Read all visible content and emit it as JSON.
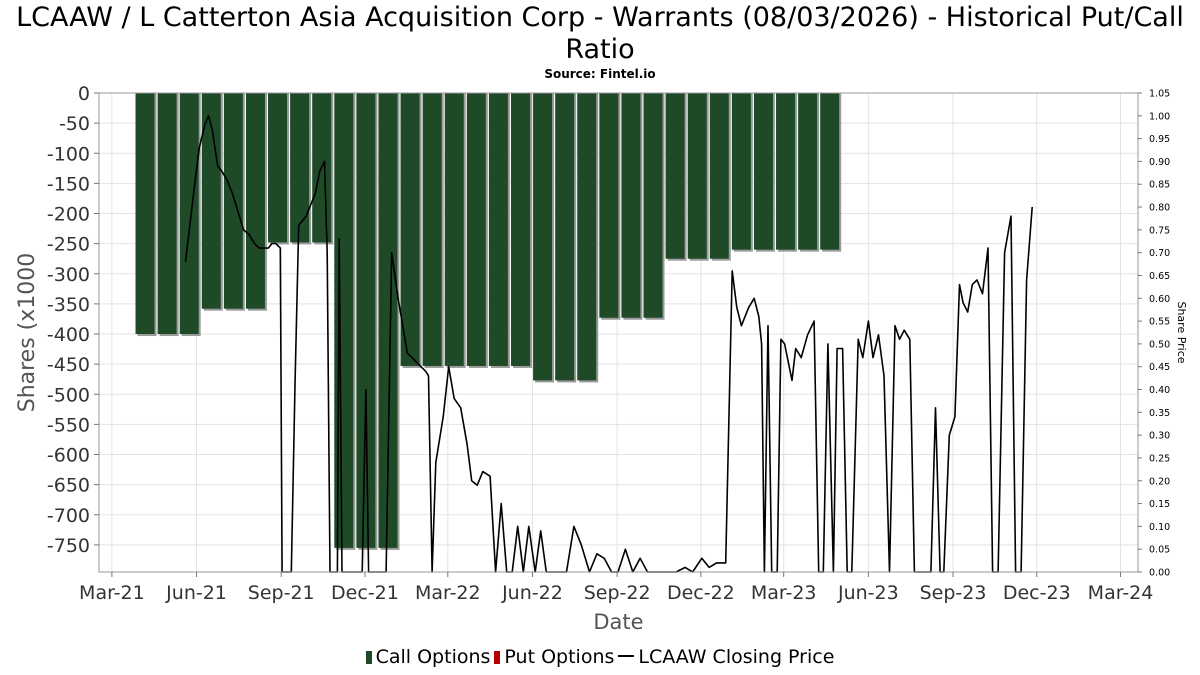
{
  "chart_data": {
    "type": "bar",
    "title": "LCAAW / L Catterton Asia Acquisition Corp - Warrants (08/03/2026) - Historical Put/Call Ratio",
    "subtitle": "Source: Fintel.io",
    "xlabel": "Date",
    "ylabel": "Shares (x1000",
    "ylabel_right": "Share Price",
    "x_ticks": [
      "Mar-21",
      "Jun-21",
      "Sep-21",
      "Dec-21",
      "Mar-22",
      "Jun-22",
      "Sep-22",
      "Dec-22",
      "Mar-23",
      "Jun-23",
      "Sep-23",
      "Dec-23",
      "Mar-24"
    ],
    "x_range": [
      "2021-02-15",
      "2024-03-20"
    ],
    "y_ticks": [
      0,
      -50,
      -100,
      -150,
      -200,
      -250,
      -300,
      -350,
      -400,
      -450,
      -500,
      -550,
      -600,
      -650,
      -700,
      -750
    ],
    "ylim": [
      -795,
      0
    ],
    "y2_ticks": [
      "0.00",
      "0.05",
      "0.10",
      "0.15",
      "0.20",
      "0.25",
      "0.30",
      "0.35",
      "0.40",
      "0.45",
      "0.50",
      "0.55",
      "0.60",
      "0.65",
      "0.70",
      "0.75",
      "0.80",
      "0.85",
      "0.90",
      "0.95",
      "1.00",
      "1.05"
    ],
    "y2lim": [
      0,
      1.05
    ],
    "grid": true,
    "legend_position": "bottom",
    "series": [
      {
        "name": "Call Options",
        "kind": "bar",
        "color": "#1e4a28",
        "points": [
          {
            "date": "2021-04-06",
            "value": -400
          },
          {
            "date": "2021-04-30",
            "value": -400
          },
          {
            "date": "2021-05-24",
            "value": -400
          },
          {
            "date": "2021-06-17",
            "value": -358
          },
          {
            "date": "2021-07-11",
            "value": -358
          },
          {
            "date": "2021-08-04",
            "value": -358
          },
          {
            "date": "2021-08-28",
            "value": -248
          },
          {
            "date": "2021-09-21",
            "value": -248
          },
          {
            "date": "2021-10-15",
            "value": -248
          },
          {
            "date": "2021-11-08",
            "value": -755
          },
          {
            "date": "2021-12-02",
            "value": -755
          },
          {
            "date": "2021-12-26",
            "value": -755
          },
          {
            "date": "2022-01-19",
            "value": -453
          },
          {
            "date": "2022-02-12",
            "value": -453
          },
          {
            "date": "2022-03-08",
            "value": -453
          },
          {
            "date": "2022-04-01",
            "value": -453
          },
          {
            "date": "2022-04-25",
            "value": -453
          },
          {
            "date": "2022-05-19",
            "value": -453
          },
          {
            "date": "2022-06-12",
            "value": -477
          },
          {
            "date": "2022-07-06",
            "value": -477
          },
          {
            "date": "2022-07-30",
            "value": -477
          },
          {
            "date": "2022-08-23",
            "value": -373
          },
          {
            "date": "2022-09-16",
            "value": -373
          },
          {
            "date": "2022-10-10",
            "value": -373
          },
          {
            "date": "2022-11-03",
            "value": -275
          },
          {
            "date": "2022-11-27",
            "value": -275
          },
          {
            "date": "2022-12-21",
            "value": -275
          },
          {
            "date": "2023-01-14",
            "value": -260
          },
          {
            "date": "2023-02-07",
            "value": -260
          },
          {
            "date": "2023-03-03",
            "value": -260
          },
          {
            "date": "2023-03-27",
            "value": -260
          },
          {
            "date": "2023-04-20",
            "value": -260
          }
        ]
      },
      {
        "name": "Put Options",
        "kind": "bar",
        "color": "#b40000",
        "points": []
      },
      {
        "name": "LCAAW Closing Price",
        "kind": "line",
        "axis": "right",
        "color": "#000000",
        "points": [
          [
            "2021-05-20",
            0.68
          ],
          [
            "2021-05-30",
            0.85
          ],
          [
            "2021-06-04",
            0.93
          ],
          [
            "2021-06-10",
            0.98
          ],
          [
            "2021-06-14",
            1.0
          ],
          [
            "2021-06-18",
            0.97
          ],
          [
            "2021-06-24",
            0.89
          ],
          [
            "2021-06-28",
            0.88
          ],
          [
            "2021-07-04",
            0.86
          ],
          [
            "2021-07-10",
            0.83
          ],
          [
            "2021-07-16",
            0.79
          ],
          [
            "2021-07-22",
            0.75
          ],
          [
            "2021-07-28",
            0.74
          ],
          [
            "2021-08-03",
            0.72
          ],
          [
            "2021-08-08",
            0.71
          ],
          [
            "2021-08-14",
            0.71
          ],
          [
            "2021-08-18",
            0.71
          ],
          [
            "2021-08-22",
            0.72
          ],
          [
            "2021-08-26",
            0.72
          ],
          [
            "2021-08-31",
            0.71
          ],
          [
            "2021-09-02",
            0.0
          ],
          [
            "2021-09-07",
            0.0
          ],
          [
            "2021-09-12",
            0.0
          ],
          [
            "2021-09-16",
            0.41
          ],
          [
            "2021-09-20",
            0.76
          ],
          [
            "2021-09-28",
            0.78
          ],
          [
            "2021-10-08",
            0.83
          ],
          [
            "2021-10-13",
            0.88
          ],
          [
            "2021-10-18",
            0.9
          ],
          [
            "2021-10-21",
            0.7
          ],
          [
            "2021-10-24",
            0.0
          ],
          [
            "2021-11-01",
            0.0
          ],
          [
            "2021-11-03",
            0.73
          ],
          [
            "2021-11-06",
            0.0
          ],
          [
            "2021-11-14",
            0.0
          ],
          [
            "2021-11-20",
            0.0
          ],
          [
            "2021-11-28",
            0.0
          ],
          [
            "2021-12-02",
            0.4
          ],
          [
            "2021-12-05",
            0.0
          ],
          [
            "2021-12-10",
            0.0
          ],
          [
            "2021-12-18",
            0.0
          ],
          [
            "2021-12-24",
            0.0
          ],
          [
            "2021-12-30",
            0.7
          ],
          [
            "2022-01-06",
            0.6
          ],
          [
            "2022-01-16",
            0.48
          ],
          [
            "2022-01-26",
            0.46
          ],
          [
            "2022-02-05",
            0.44
          ],
          [
            "2022-02-08",
            0.43
          ],
          [
            "2022-02-12",
            0.0
          ],
          [
            "2022-02-16",
            0.24
          ],
          [
            "2022-02-24",
            0.34
          ],
          [
            "2022-03-02",
            0.45
          ],
          [
            "2022-03-08",
            0.38
          ],
          [
            "2022-03-15",
            0.36
          ],
          [
            "2022-03-22",
            0.28
          ],
          [
            "2022-03-27",
            0.2
          ],
          [
            "2022-04-02",
            0.19
          ],
          [
            "2022-04-08",
            0.22
          ],
          [
            "2022-04-16",
            0.21
          ],
          [
            "2022-04-22",
            0.0
          ],
          [
            "2022-04-28",
            0.15
          ],
          [
            "2022-05-04",
            0.0
          ],
          [
            "2022-05-10",
            0.0
          ],
          [
            "2022-05-16",
            0.1
          ],
          [
            "2022-05-22",
            0.0
          ],
          [
            "2022-05-28",
            0.1
          ],
          [
            "2022-06-04",
            0.0
          ],
          [
            "2022-06-10",
            0.09
          ],
          [
            "2022-06-16",
            0.0
          ],
          [
            "2022-06-22",
            0.0
          ],
          [
            "2022-06-30",
            0.0
          ],
          [
            "2022-07-08",
            0.0
          ],
          [
            "2022-07-16",
            0.1
          ],
          [
            "2022-07-24",
            0.06
          ],
          [
            "2022-08-02",
            0.0
          ],
          [
            "2022-08-10",
            0.04
          ],
          [
            "2022-08-18",
            0.03
          ],
          [
            "2022-08-26",
            0.0
          ],
          [
            "2022-09-02",
            0.0
          ],
          [
            "2022-09-10",
            0.05
          ],
          [
            "2022-09-18",
            0.0
          ],
          [
            "2022-09-26",
            0.03
          ],
          [
            "2022-10-04",
            0.0
          ],
          [
            "2022-10-14",
            0.0
          ],
          [
            "2022-10-24",
            0.0
          ],
          [
            "2022-11-04",
            0.0
          ],
          [
            "2022-11-14",
            0.01
          ],
          [
            "2022-11-22",
            0.0
          ],
          [
            "2022-12-02",
            0.03
          ],
          [
            "2022-12-10",
            0.01
          ],
          [
            "2022-12-18",
            0.02
          ],
          [
            "2022-12-28",
            0.02
          ],
          [
            "2023-01-04",
            0.66
          ],
          [
            "2023-01-09",
            0.58
          ],
          [
            "2023-01-14",
            0.54
          ],
          [
            "2023-01-22",
            0.58
          ],
          [
            "2023-01-28",
            0.6
          ],
          [
            "2023-02-02",
            0.56
          ],
          [
            "2023-02-05",
            0.5
          ],
          [
            "2023-02-08",
            0.0
          ],
          [
            "2023-02-12",
            0.54
          ],
          [
            "2023-02-16",
            0.0
          ],
          [
            "2023-02-22",
            0.0
          ],
          [
            "2023-02-26",
            0.51
          ],
          [
            "2023-03-02",
            0.5
          ],
          [
            "2023-03-06",
            0.46
          ],
          [
            "2023-03-10",
            0.42
          ],
          [
            "2023-03-14",
            0.49
          ],
          [
            "2023-03-20",
            0.47
          ],
          [
            "2023-03-27",
            0.52
          ],
          [
            "2023-04-03",
            0.55
          ],
          [
            "2023-04-08",
            0.0
          ],
          [
            "2023-04-13",
            0.0
          ],
          [
            "2023-04-18",
            0.5
          ],
          [
            "2023-04-24",
            0.0
          ],
          [
            "2023-04-28",
            0.49
          ],
          [
            "2023-05-04",
            0.49
          ],
          [
            "2023-05-09",
            0.0
          ],
          [
            "2023-05-14",
            0.0
          ],
          [
            "2023-05-21",
            0.51
          ],
          [
            "2023-05-26",
            0.47
          ],
          [
            "2023-06-01",
            0.55
          ],
          [
            "2023-06-06",
            0.47
          ],
          [
            "2023-06-12",
            0.52
          ],
          [
            "2023-06-18",
            0.43
          ],
          [
            "2023-06-24",
            0.0
          ],
          [
            "2023-06-30",
            0.54
          ],
          [
            "2023-07-05",
            0.51
          ],
          [
            "2023-07-10",
            0.53
          ],
          [
            "2023-07-16",
            0.51
          ],
          [
            "2023-07-21",
            0.0
          ],
          [
            "2023-07-26",
            0.0
          ],
          [
            "2023-08-02",
            0.0
          ],
          [
            "2023-08-08",
            0.0
          ],
          [
            "2023-08-13",
            0.36
          ],
          [
            "2023-08-18",
            0.0
          ],
          [
            "2023-08-22",
            0.0
          ],
          [
            "2023-08-28",
            0.3
          ],
          [
            "2023-09-03",
            0.34
          ],
          [
            "2023-09-08",
            0.63
          ],
          [
            "2023-09-12",
            0.59
          ],
          [
            "2023-09-17",
            0.57
          ],
          [
            "2023-09-22",
            0.63
          ],
          [
            "2023-09-27",
            0.64
          ],
          [
            "2023-10-03",
            0.61
          ],
          [
            "2023-10-09",
            0.71
          ],
          [
            "2023-10-14",
            0.0
          ],
          [
            "2023-10-20",
            0.0
          ],
          [
            "2023-10-27",
            0.7
          ],
          [
            "2023-11-03",
            0.78
          ],
          [
            "2023-11-08",
            0.0
          ],
          [
            "2023-11-14",
            0.0
          ],
          [
            "2023-11-20",
            0.64
          ],
          [
            "2023-11-26",
            0.8
          ]
        ]
      }
    ]
  }
}
